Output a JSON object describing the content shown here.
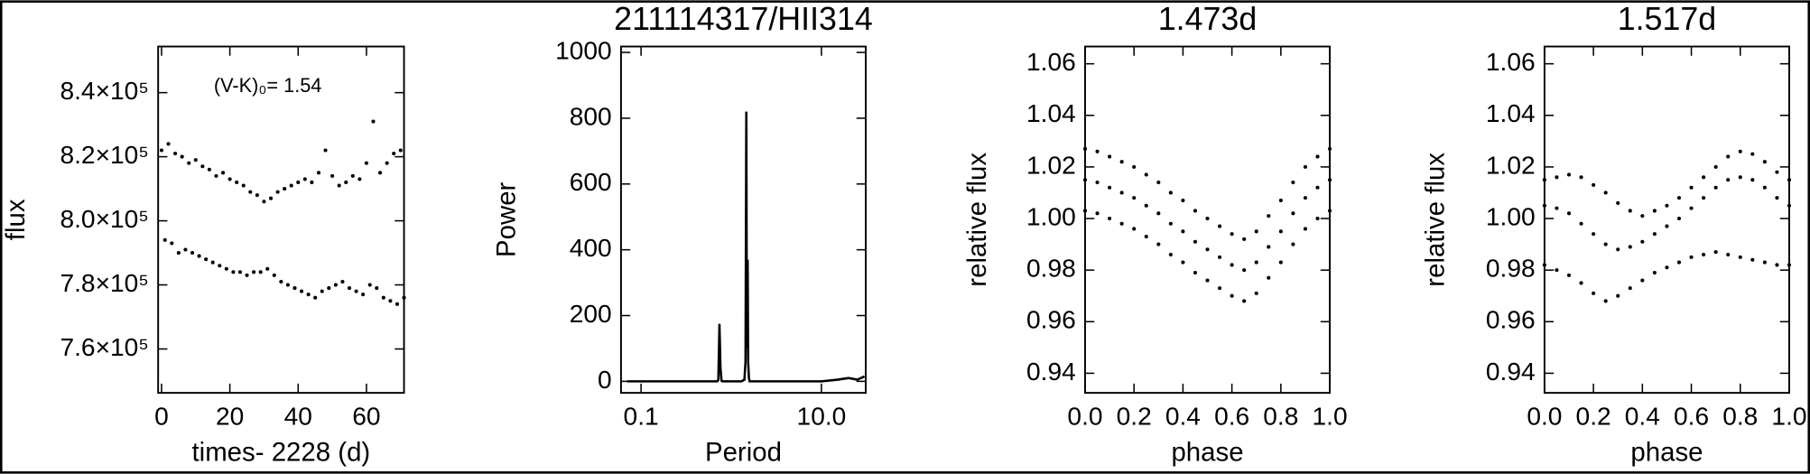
{
  "chart_data": [
    {
      "type": "scatter",
      "xlabel": "times- 2228 (d)",
      "ylabel": "flux",
      "annotation": "(V-K)₀= 1.54",
      "color": "#000000",
      "xlim": [
        -1,
        71
      ],
      "xticks": [
        0,
        20,
        40,
        60
      ],
      "ylim": [
        746300,
        854400
      ],
      "yticks": [
        {
          "value": 760000,
          "label": "7.6×10⁵"
        },
        {
          "value": 780000,
          "label": "7.8×10⁵"
        },
        {
          "value": 800000,
          "label": "8.0×10⁵"
        },
        {
          "value": 820000,
          "label": "8.2×10⁵"
        },
        {
          "value": 840000,
          "label": "8.4×10⁵"
        }
      ],
      "x": [
        0,
        1,
        2,
        3,
        4,
        5,
        6,
        7,
        8,
        9,
        10,
        11,
        12,
        13,
        14,
        15,
        16,
        17,
        18,
        19,
        20,
        21,
        22,
        23,
        24,
        25,
        26,
        27,
        28,
        29,
        30,
        31,
        32,
        33,
        34,
        35,
        36,
        37,
        38,
        39,
        40,
        41,
        42,
        43,
        44,
        45,
        46,
        47,
        48,
        49,
        50,
        51,
        52,
        53,
        54,
        55,
        56,
        57,
        58,
        59,
        60,
        61,
        62,
        63,
        64,
        65,
        66,
        67,
        68,
        69,
        70,
        71
      ],
      "values": [
        822000,
        794000,
        824000,
        793000,
        821000,
        790000,
        820000,
        791000,
        818000,
        790000,
        819000,
        789000,
        817000,
        788000,
        816000,
        787000,
        814000,
        786000,
        815000,
        785000,
        813000,
        784000,
        812000,
        784000,
        811000,
        783000,
        809000,
        784000,
        808000,
        784000,
        806000,
        785000,
        807000,
        783000,
        809000,
        781000,
        810000,
        780000,
        811000,
        779000,
        812000,
        778000,
        813000,
        777000,
        812000,
        776000,
        815000,
        778000,
        822000,
        779000,
        814000,
        780000,
        811000,
        781000,
        812000,
        779000,
        814000,
        778000,
        813000,
        777000,
        818000,
        780000,
        831000,
        779000,
        815000,
        776000,
        818000,
        775000,
        821000,
        774000,
        822000,
        776000
      ]
    },
    {
      "type": "line",
      "title": "211114317/HII314",
      "xlabel": "Period",
      "ylabel": "Power",
      "color": "#000000",
      "log_x": true,
      "xlim": [
        0.06,
        31
      ],
      "xticks": [
        0.1,
        {
          "value": 10,
          "label": "10.0"
        }
      ],
      "ylim": [
        -35,
        1018
      ],
      "yticks": [
        0,
        200,
        400,
        600,
        800,
        1000
      ],
      "x": [
        0.07,
        0.1,
        0.2,
        0.3,
        0.5,
        0.6,
        0.7,
        0.72,
        0.74,
        0.76,
        0.78,
        0.8,
        1.0,
        1.3,
        1.4,
        1.44,
        1.47,
        1.49,
        1.52,
        1.54,
        1.57,
        1.6,
        1.8,
        2.5,
        5,
        10,
        15,
        20,
        25,
        30
      ],
      "values": [
        0,
        0,
        0,
        0,
        0,
        0,
        0,
        5,
        175,
        40,
        2,
        0,
        0,
        0,
        5,
        60,
        820,
        100,
        370,
        60,
        10,
        0,
        0,
        0,
        0,
        0,
        5,
        10,
        5,
        15
      ]
    },
    {
      "type": "scatter",
      "title": "1.473d",
      "xlabel": "phase",
      "ylabel": "relative flux",
      "color": "#000000",
      "xlim": [
        0,
        1
      ],
      "xticks": [
        {
          "value": 0,
          "label": "0.0"
        },
        0.2,
        0.4,
        0.6,
        0.8,
        {
          "value": 1,
          "label": "1.0"
        }
      ],
      "ylim": [
        0.9324,
        1.0667
      ],
      "yticks": [
        0.94,
        0.96,
        0.98,
        {
          "value": 1,
          "label": "1.00"
        },
        1.02,
        1.04,
        1.06
      ],
      "x": [
        0,
        0.05,
        0.1,
        0.15,
        0.2,
        0.25,
        0.3,
        0.35,
        0.4,
        0.45,
        0.5,
        0.55,
        0.6,
        0.65,
        0.7,
        0.75,
        0.8,
        0.85,
        0.9,
        0.95,
        1,
        0,
        0.05,
        0.1,
        0.15,
        0.2,
        0.25,
        0.3,
        0.35,
        0.4,
        0.45,
        0.5,
        0.55,
        0.6,
        0.65,
        0.7,
        0.75,
        0.8,
        0.85,
        0.9,
        0.95,
        1,
        0,
        0.05,
        0.1,
        0.15,
        0.2,
        0.25,
        0.3,
        0.35,
        0.4,
        0.45,
        0.5,
        0.55,
        0.6,
        0.65,
        0.7,
        0.75,
        0.8,
        0.85,
        0.9,
        0.95,
        1
      ],
      "values": [
        1.015,
        1.014,
        1.012,
        1.01,
        1.008,
        1.005,
        1.002,
        0.998,
        0.995,
        0.991,
        0.988,
        0.985,
        0.982,
        0.98,
        0.983,
        0.989,
        0.995,
        1.002,
        1.008,
        1.012,
        1.015,
        1.027,
        1.026,
        1.024,
        1.022,
        1.02,
        1.017,
        1.014,
        1.01,
        1.007,
        1.003,
        1.0,
        0.997,
        0.994,
        0.992,
        0.995,
        1.001,
        1.007,
        1.014,
        1.02,
        1.024,
        1.027,
        1.003,
        1.002,
        1.0,
        0.998,
        0.996,
        0.993,
        0.99,
        0.986,
        0.983,
        0.979,
        0.976,
        0.973,
        0.97,
        0.968,
        0.971,
        0.977,
        0.983,
        0.99,
        0.996,
        1.0,
        1.003
      ]
    },
    {
      "type": "scatter",
      "title": "1.517d",
      "xlabel": "phase",
      "ylabel": "relative flux",
      "color": "#000000",
      "xlim": [
        0,
        1
      ],
      "xticks": [
        {
          "value": 0,
          "label": "0.0"
        },
        0.2,
        0.4,
        0.6,
        0.8,
        {
          "value": 1,
          "label": "1.0"
        }
      ],
      "ylim": [
        0.9324,
        1.0667
      ],
      "yticks": [
        0.94,
        0.96,
        0.98,
        {
          "value": 1,
          "label": "1.00"
        },
        1.02,
        1.04,
        1.06
      ],
      "x": [
        0,
        0.05,
        0.1,
        0.15,
        0.2,
        0.25,
        0.3,
        0.35,
        0.4,
        0.45,
        0.5,
        0.55,
        0.6,
        0.65,
        0.7,
        0.75,
        0.8,
        0.85,
        0.9,
        0.95,
        1,
        0,
        0.05,
        0.1,
        0.15,
        0.2,
        0.25,
        0.3,
        0.35,
        0.4,
        0.45,
        0.5,
        0.55,
        0.6,
        0.65,
        0.7,
        0.75,
        0.8,
        0.85,
        0.9,
        0.95,
        1,
        0,
        0.05,
        0.1,
        0.15,
        0.2,
        0.25,
        0.3,
        0.35,
        0.4,
        0.45,
        0.5,
        0.55,
        0.6,
        0.65,
        0.7,
        0.75,
        0.8,
        0.85,
        0.9,
        0.95,
        1
      ],
      "values": [
        1.005,
        1.004,
        1.002,
        0.998,
        0.994,
        0.99,
        0.988,
        0.989,
        0.991,
        0.994,
        0.997,
        1.0,
        1.004,
        1.008,
        1.012,
        1.015,
        1.016,
        1.015,
        1.012,
        1.008,
        1.005,
        1.015,
        1.016,
        1.017,
        1.016,
        1.013,
        1.01,
        1.006,
        1.003,
        1.001,
        1.003,
        1.005,
        1.008,
        1.012,
        1.016,
        1.02,
        1.024,
        1.026,
        1.025,
        1.022,
        1.018,
        1.015,
        0.982,
        0.98,
        0.978,
        0.975,
        0.971,
        0.968,
        0.97,
        0.973,
        0.976,
        0.979,
        0.981,
        0.983,
        0.985,
        0.986,
        0.987,
        0.986,
        0.985,
        0.984,
        0.983,
        0.982,
        0.982
      ]
    }
  ]
}
